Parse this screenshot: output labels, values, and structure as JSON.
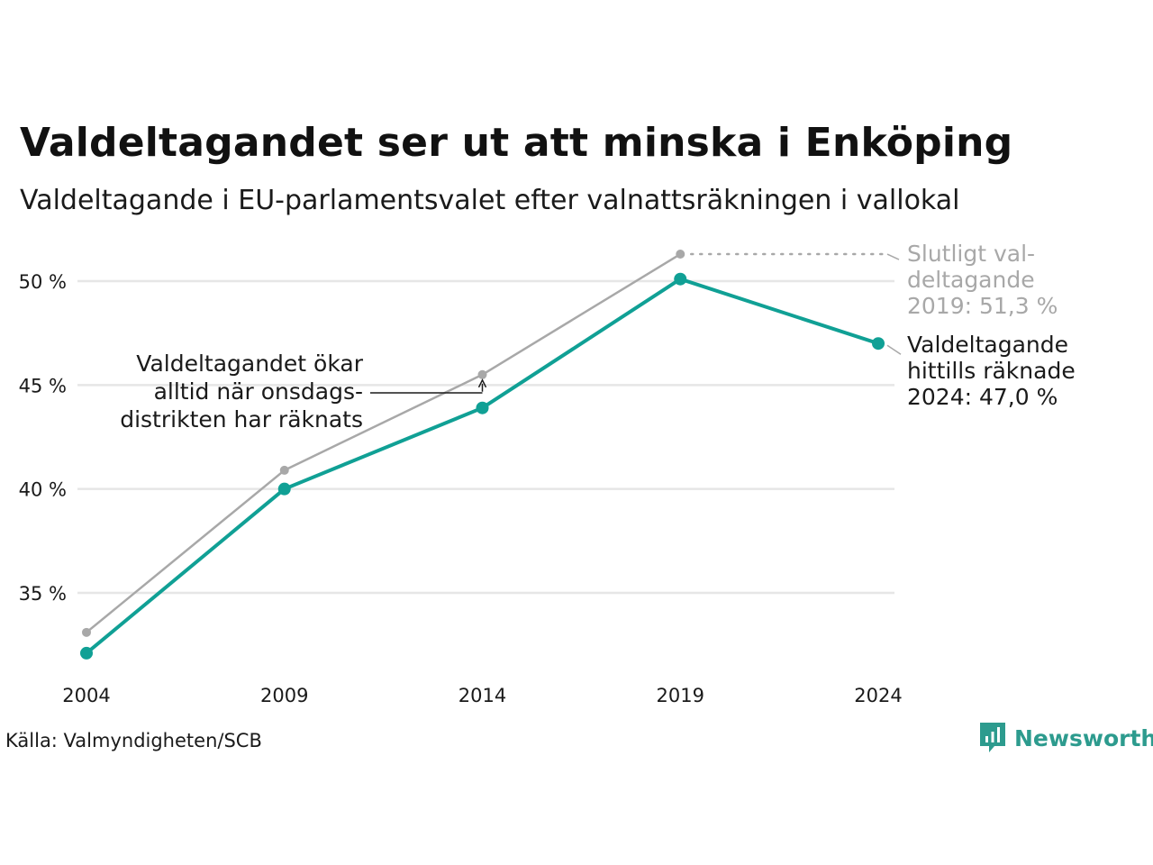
{
  "header": {
    "title": "Valdeltagandet ser ut att minska i Enköping",
    "subtitle": "Valdeltagande i EU-parlamentsvalet efter valnattsräkningen i vallokal"
  },
  "footer": {
    "source": "Källa: Valmyndigheten/SCB",
    "brand": "Newsworthy"
  },
  "colors": {
    "preliminary": "#10a095",
    "final": "#a8a8a8",
    "grid": "#e6e6e6",
    "brand": "#2d9b8e"
  },
  "icons": {
    "brand_logo": "newsworthy-logo-icon"
  },
  "chart_data": {
    "type": "line",
    "x": [
      2004,
      2009,
      2014,
      2019,
      2024
    ],
    "ylim": [
      31,
      52
    ],
    "yticks": [
      {
        "value": 35,
        "label": "35 %"
      },
      {
        "value": 40,
        "label": "40 %"
      },
      {
        "value": 45,
        "label": "45 %"
      },
      {
        "value": 50,
        "label": "50 %"
      }
    ],
    "xticks": [
      "2004",
      "2009",
      "2014",
      "2019",
      "2024"
    ],
    "grid": true,
    "series": [
      {
        "key": "final",
        "values": [
          33.1,
          40.9,
          45.5,
          51.3,
          null
        ]
      },
      {
        "key": "preliminary",
        "values": [
          32.1,
          40.0,
          43.9,
          50.1,
          47.0
        ]
      }
    ],
    "annotations": {
      "final_label": [
        "Slutligt val-",
        "deltagande",
        "2019: 51,3 %"
      ],
      "preliminary_label": [
        "Valdeltagande",
        "hittills räknade",
        "2024: 47,0 %"
      ],
      "note": [
        "Valdeltagandet ökar",
        "alltid när onsdags-",
        "distrikten har räknats"
      ]
    }
  }
}
